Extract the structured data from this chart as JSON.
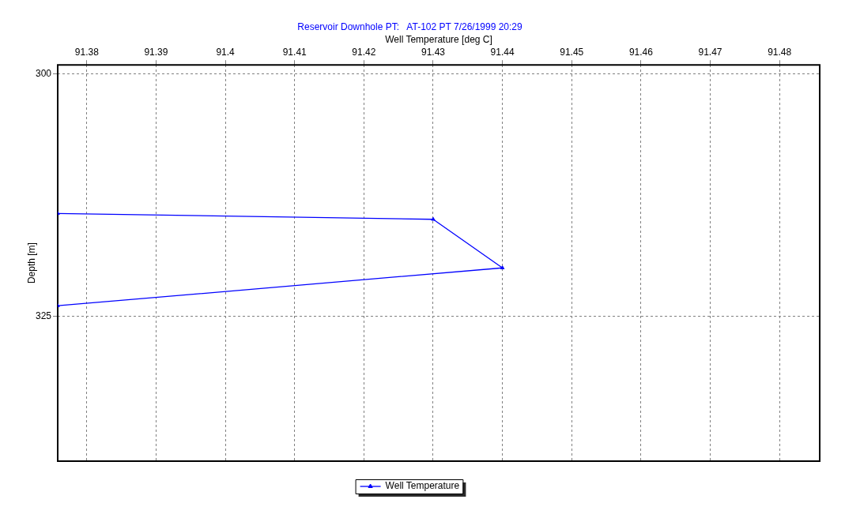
{
  "chart_data": {
    "type": "line",
    "title": "Reservoir Downhole PT:   AT-102 PT 7/26/1999 20:29",
    "xlabel": "Well Temperature [deg C]",
    "ylabel": "Depth [m]",
    "x": [
      91.3758,
      91.43,
      91.44,
      91.3758
    ],
    "series": [
      {
        "name": "Well Temperature",
        "color": "#0000ff",
        "values": [
          314.4,
          315,
          320,
          323.9
        ]
      }
    ],
    "xlim": [
      91.3758,
      91.4858
    ],
    "xticks": [
      91.38,
      91.39,
      91.4,
      91.41,
      91.42,
      91.43,
      91.44,
      91.45,
      91.46,
      91.47,
      91.48
    ],
    "ylim": [
      339.9,
      299.1
    ],
    "yticks": [
      300,
      325
    ],
    "grid": true,
    "legend": "bottom",
    "marker": "triangle",
    "line_style": "solid"
  }
}
